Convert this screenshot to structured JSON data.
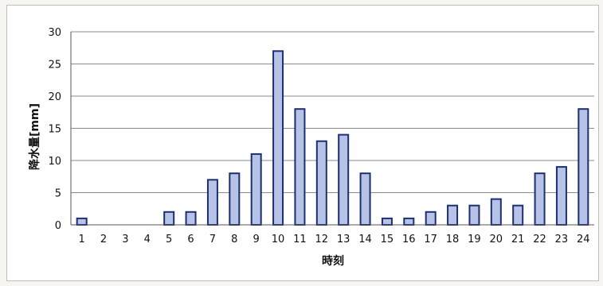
{
  "chart_data": {
    "type": "bar",
    "xlabel": "時刻",
    "ylabel": "降水量[mm]",
    "ylim": [
      0,
      30
    ],
    "yticks": [
      0,
      5,
      10,
      15,
      20,
      25,
      30
    ],
    "grid": true,
    "legend": "none",
    "categories": [
      "1",
      "2",
      "3",
      "4",
      "5",
      "6",
      "7",
      "8",
      "9",
      "10",
      "11",
      "12",
      "13",
      "14",
      "15",
      "16",
      "17",
      "18",
      "19",
      "20",
      "21",
      "22",
      "23",
      "24"
    ],
    "values": [
      1,
      0,
      0,
      0,
      2,
      2,
      7,
      8,
      11,
      27,
      18,
      13,
      14,
      8,
      1,
      1,
      2,
      3,
      3,
      4,
      3,
      8,
      9,
      18
    ],
    "bar_fill": "#b7c3e6",
    "bar_stroke": "#1b2f72"
  }
}
